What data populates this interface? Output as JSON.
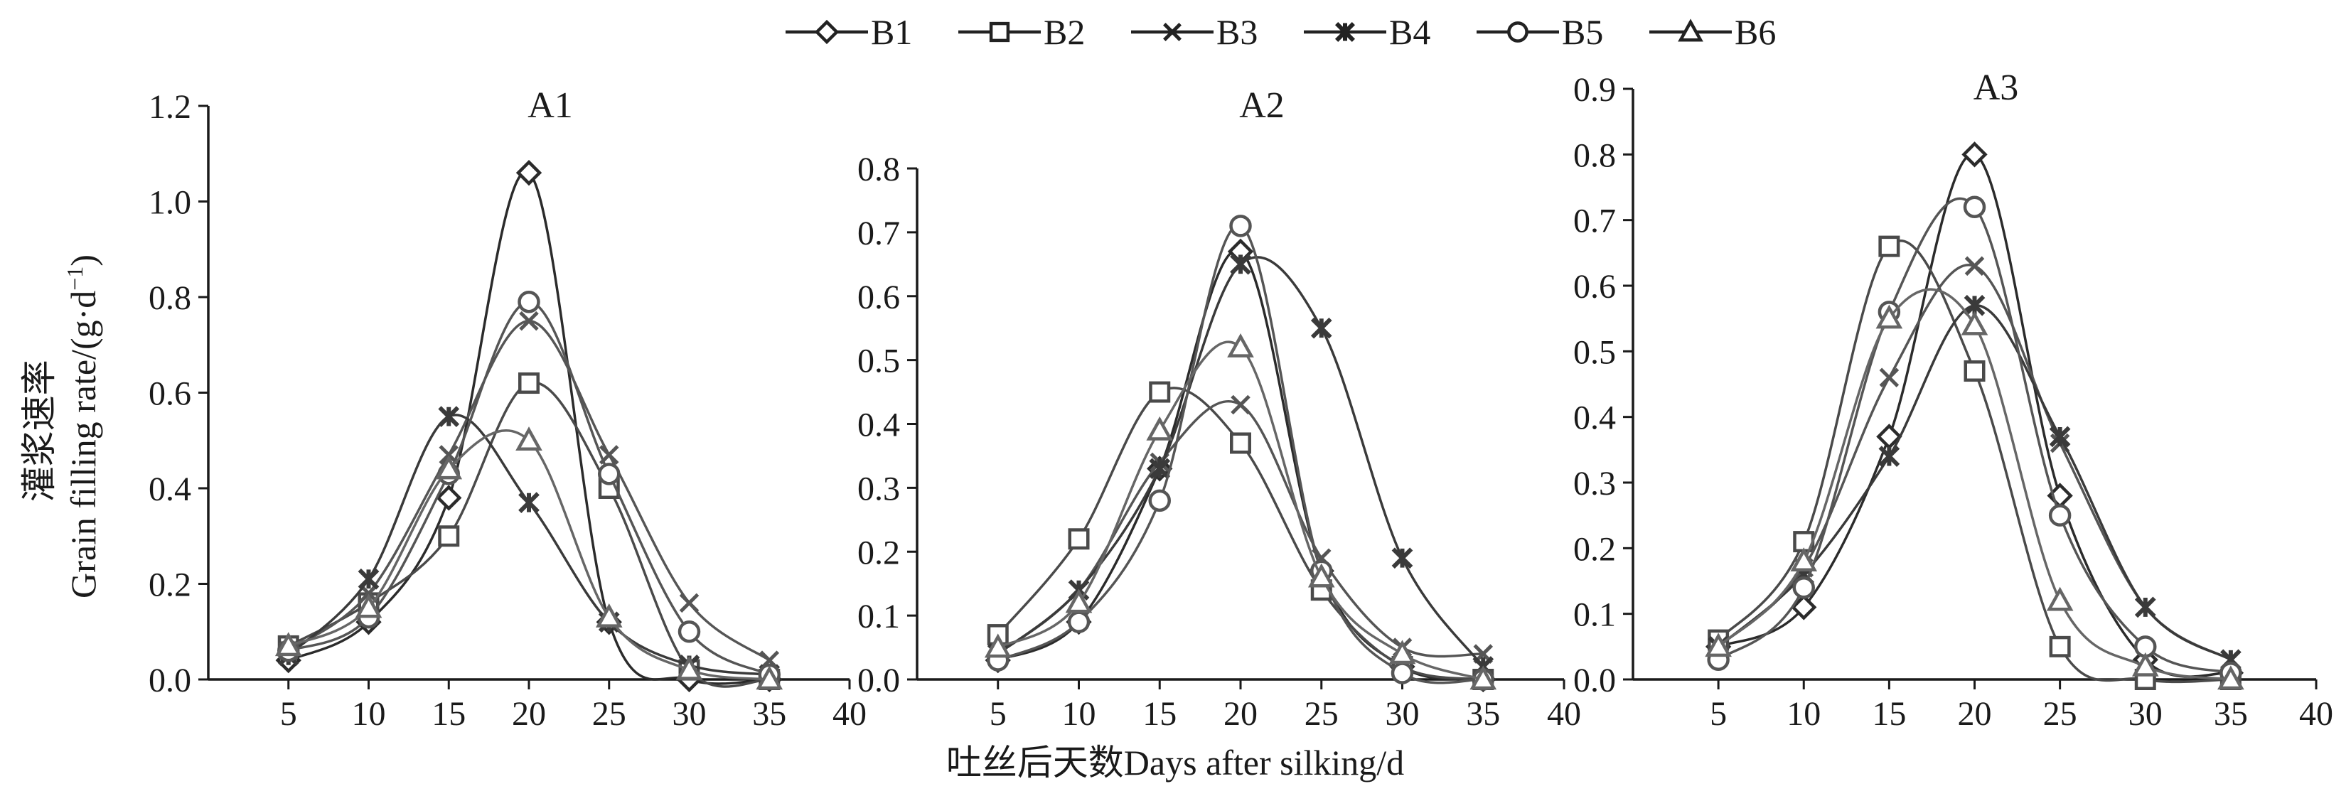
{
  "figure": {
    "ylabel_cn": "灌浆速率",
    "ylabel_en": "Grain filling rate/(g·d",
    "ylabel_sup": "−1",
    "ylabel_close": ")",
    "xlabel": "吐丝后天数Days after silking/d"
  },
  "legend": [
    "B1",
    "B2",
    "B3",
    "B4",
    "B5",
    "B6"
  ],
  "series_styles": [
    {
      "name": "B1",
      "marker": "diamond",
      "color": "#2b2b2b"
    },
    {
      "name": "B2",
      "marker": "square",
      "color": "#4a4a4a"
    },
    {
      "name": "B3",
      "marker": "x",
      "color": "#555555"
    },
    {
      "name": "B4",
      "marker": "star",
      "color": "#3a3a3a"
    },
    {
      "name": "B5",
      "marker": "circle",
      "color": "#555555"
    },
    {
      "name": "B6",
      "marker": "triangle",
      "color": "#666666"
    }
  ],
  "chart_data": [
    {
      "type": "line",
      "title": "A1",
      "x": [
        5,
        10,
        15,
        20,
        25,
        30,
        35
      ],
      "xlim": [
        0,
        40
      ],
      "xticks": [
        5,
        10,
        15,
        20,
        25,
        30,
        35,
        40
      ],
      "ylim": [
        0,
        1.2
      ],
      "yticks": [
        "0.0",
        "0.2",
        "0.4",
        "0.6",
        "0.8",
        "1.0",
        "1.2"
      ],
      "series": [
        {
          "name": "B1",
          "values": [
            0.04,
            0.12,
            0.38,
            1.06,
            0.12,
            0.0,
            0.0
          ]
        },
        {
          "name": "B2",
          "values": [
            0.07,
            0.16,
            0.3,
            0.62,
            0.4,
            0.02,
            0.0
          ]
        },
        {
          "name": "B3",
          "values": [
            0.06,
            0.18,
            0.47,
            0.75,
            0.47,
            0.16,
            0.04
          ]
        },
        {
          "name": "B4",
          "values": [
            0.05,
            0.21,
            0.55,
            0.37,
            0.12,
            0.03,
            0.01
          ]
        },
        {
          "name": "B5",
          "values": [
            0.06,
            0.13,
            0.43,
            0.79,
            0.43,
            0.1,
            0.01
          ]
        },
        {
          "name": "B6",
          "values": [
            0.07,
            0.15,
            0.44,
            0.5,
            0.13,
            0.02,
            0.0
          ]
        }
      ]
    },
    {
      "type": "line",
      "title": "A2",
      "x": [
        5,
        10,
        15,
        20,
        25,
        30,
        35
      ],
      "xlim": [
        0,
        40
      ],
      "xticks": [
        5,
        10,
        15,
        20,
        25,
        30,
        35,
        40
      ],
      "ylim": [
        0,
        0.8
      ],
      "yticks": [
        "0.0",
        "0.1",
        "0.2",
        "0.3",
        "0.4",
        "0.5",
        "0.6",
        "0.7",
        "0.8"
      ],
      "series": [
        {
          "name": "B1",
          "values": [
            0.03,
            0.09,
            0.33,
            0.67,
            0.17,
            0.02,
            0.0
          ]
        },
        {
          "name": "B2",
          "values": [
            0.07,
            0.22,
            0.45,
            0.37,
            0.14,
            0.02,
            0.0
          ]
        },
        {
          "name": "B3",
          "values": [
            0.04,
            0.14,
            0.34,
            0.43,
            0.19,
            0.05,
            0.04
          ]
        },
        {
          "name": "B4",
          "values": [
            0.04,
            0.14,
            0.33,
            0.65,
            0.55,
            0.19,
            0.02
          ]
        },
        {
          "name": "B5",
          "values": [
            0.03,
            0.09,
            0.28,
            0.71,
            0.17,
            0.01,
            0.0
          ]
        },
        {
          "name": "B6",
          "values": [
            0.05,
            0.12,
            0.39,
            0.52,
            0.16,
            0.04,
            0.0
          ]
        }
      ]
    },
    {
      "type": "line",
      "title": "A3",
      "x": [
        5,
        10,
        15,
        20,
        25,
        30,
        35
      ],
      "xlim": [
        0,
        40
      ],
      "xticks": [
        5,
        10,
        15,
        20,
        25,
        30,
        35,
        40
      ],
      "ylim": [
        0,
        0.9
      ],
      "yticks": [
        "0.0",
        "0.1",
        "0.2",
        "0.3",
        "0.4",
        "0.5",
        "0.6",
        "0.7",
        "0.8",
        "0.9"
      ],
      "series": [
        {
          "name": "B1",
          "values": [
            0.05,
            0.11,
            0.37,
            0.8,
            0.28,
            0.03,
            0.01
          ]
        },
        {
          "name": "B2",
          "values": [
            0.06,
            0.21,
            0.66,
            0.47,
            0.05,
            0.0,
            0.0
          ]
        },
        {
          "name": "B3",
          "values": [
            0.05,
            0.17,
            0.46,
            0.63,
            0.36,
            0.11,
            0.03
          ]
        },
        {
          "name": "B4",
          "values": [
            0.05,
            0.16,
            0.34,
            0.57,
            0.37,
            0.11,
            0.03
          ]
        },
        {
          "name": "B5",
          "values": [
            0.03,
            0.14,
            0.56,
            0.72,
            0.25,
            0.05,
            0.01
          ]
        },
        {
          "name": "B6",
          "values": [
            0.05,
            0.18,
            0.55,
            0.54,
            0.12,
            0.02,
            0.0
          ]
        }
      ]
    }
  ]
}
